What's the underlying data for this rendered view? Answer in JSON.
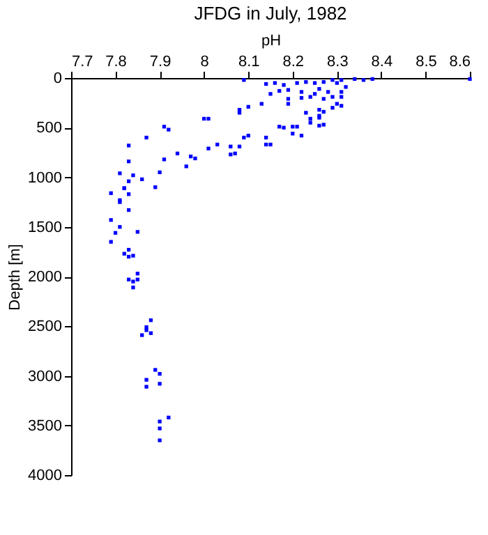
{
  "chart_data": {
    "type": "scatter",
    "title": "JFDG in July, 1982",
    "xlabel": "pH",
    "ylabel": "Depth [m]",
    "xlim": [
      7.7,
      8.6
    ],
    "xticks": [
      7.7,
      7.8,
      7.9,
      8,
      8.1,
      8.2,
      8.3,
      8.4,
      8.5,
      8.6
    ],
    "ylim": [
      4000,
      0
    ],
    "yticks": [
      0,
      500,
      1000,
      1500,
      2000,
      2500,
      3000,
      3500,
      4000
    ],
    "grid": false,
    "marker": "square",
    "x": [
      8.09,
      8.6,
      8.16,
      8.14,
      8.18,
      8.17,
      8.15,
      8.19,
      8.21,
      8.23,
      8.25,
      8.27,
      8.29,
      8.31,
      8.34,
      8.36,
      8.38,
      8.19,
      8.19,
      8.22,
      8.22,
      8.24,
      8.26,
      8.25,
      8.27,
      8.28,
      8.29,
      8.31,
      8.32,
      8.3,
      8.29,
      8.31,
      8.3,
      8.31,
      8.13,
      8.1,
      8.08,
      8.08,
      8,
      8.01,
      8.23,
      8.26,
      8.27,
      8.24,
      8.24,
      8.26,
      8.27,
      8.26,
      8.17,
      8.18,
      8.2,
      8.21,
      8.2,
      8.22,
      8.26,
      8.14,
      8.09,
      8.1,
      8.14,
      8.15,
      8.03,
      8.01,
      8.06,
      8.08,
      8.06,
      8.07,
      7.91,
      7.92,
      7.87,
      7.83,
      7.83,
      7.91,
      7.94,
      7.97,
      7.98,
      7.96,
      7.9,
      7.86,
      7.84,
      7.83,
      7.81,
      7.89,
      7.82,
      7.83,
      7.81,
      7.81,
      7.79,
      7.82,
      7.83,
      7.79,
      7.81,
      7.8,
      7.79,
      7.85,
      7.83,
      7.82,
      7.83,
      7.84,
      7.85,
      7.85,
      7.83,
      7.84,
      7.84,
      7.88,
      7.87,
      7.87,
      7.88,
      7.86,
      7.89,
      7.9,
      7.87,
      7.9,
      7.87,
      7.92,
      7.9,
      7.9,
      7.9
    ],
    "series": [
      {
        "color": "#0000ff",
        "values": [
          20,
          10,
          50,
          60,
          70,
          130,
          160,
          120,
          50,
          40,
          50,
          40,
          20,
          20,
          10,
          20,
          10,
          210,
          260,
          140,
          200,
          190,
          110,
          160,
          210,
          140,
          190,
          190,
          90,
          260,
          300,
          280,
          50,
          140,
          260,
          290,
          320,
          350,
          410,
          410,
          350,
          320,
          340,
          410,
          450,
          400,
          470,
          380,
          490,
          500,
          490,
          490,
          560,
          580,
          480,
          600,
          600,
          580,
          670,
          670,
          670,
          710,
          690,
          690,
          770,
          760,
          490,
          520,
          600,
          680,
          840,
          820,
          760,
          790,
          810,
          890,
          950,
          1020,
          980,
          1040,
          960,
          1100,
          1110,
          1170,
          1230,
          1250,
          1160,
          1110,
          1330,
          1430,
          1500,
          1560,
          1650,
          1550,
          1730,
          1770,
          1800,
          1790,
          1970,
          2030,
          2030,
          2050,
          2110,
          2440,
          2510,
          2540,
          2570,
          2590,
          2940,
          2980,
          3040,
          3080,
          3110,
          3420,
          3460,
          3530,
          3650
        ]
      }
    ]
  }
}
